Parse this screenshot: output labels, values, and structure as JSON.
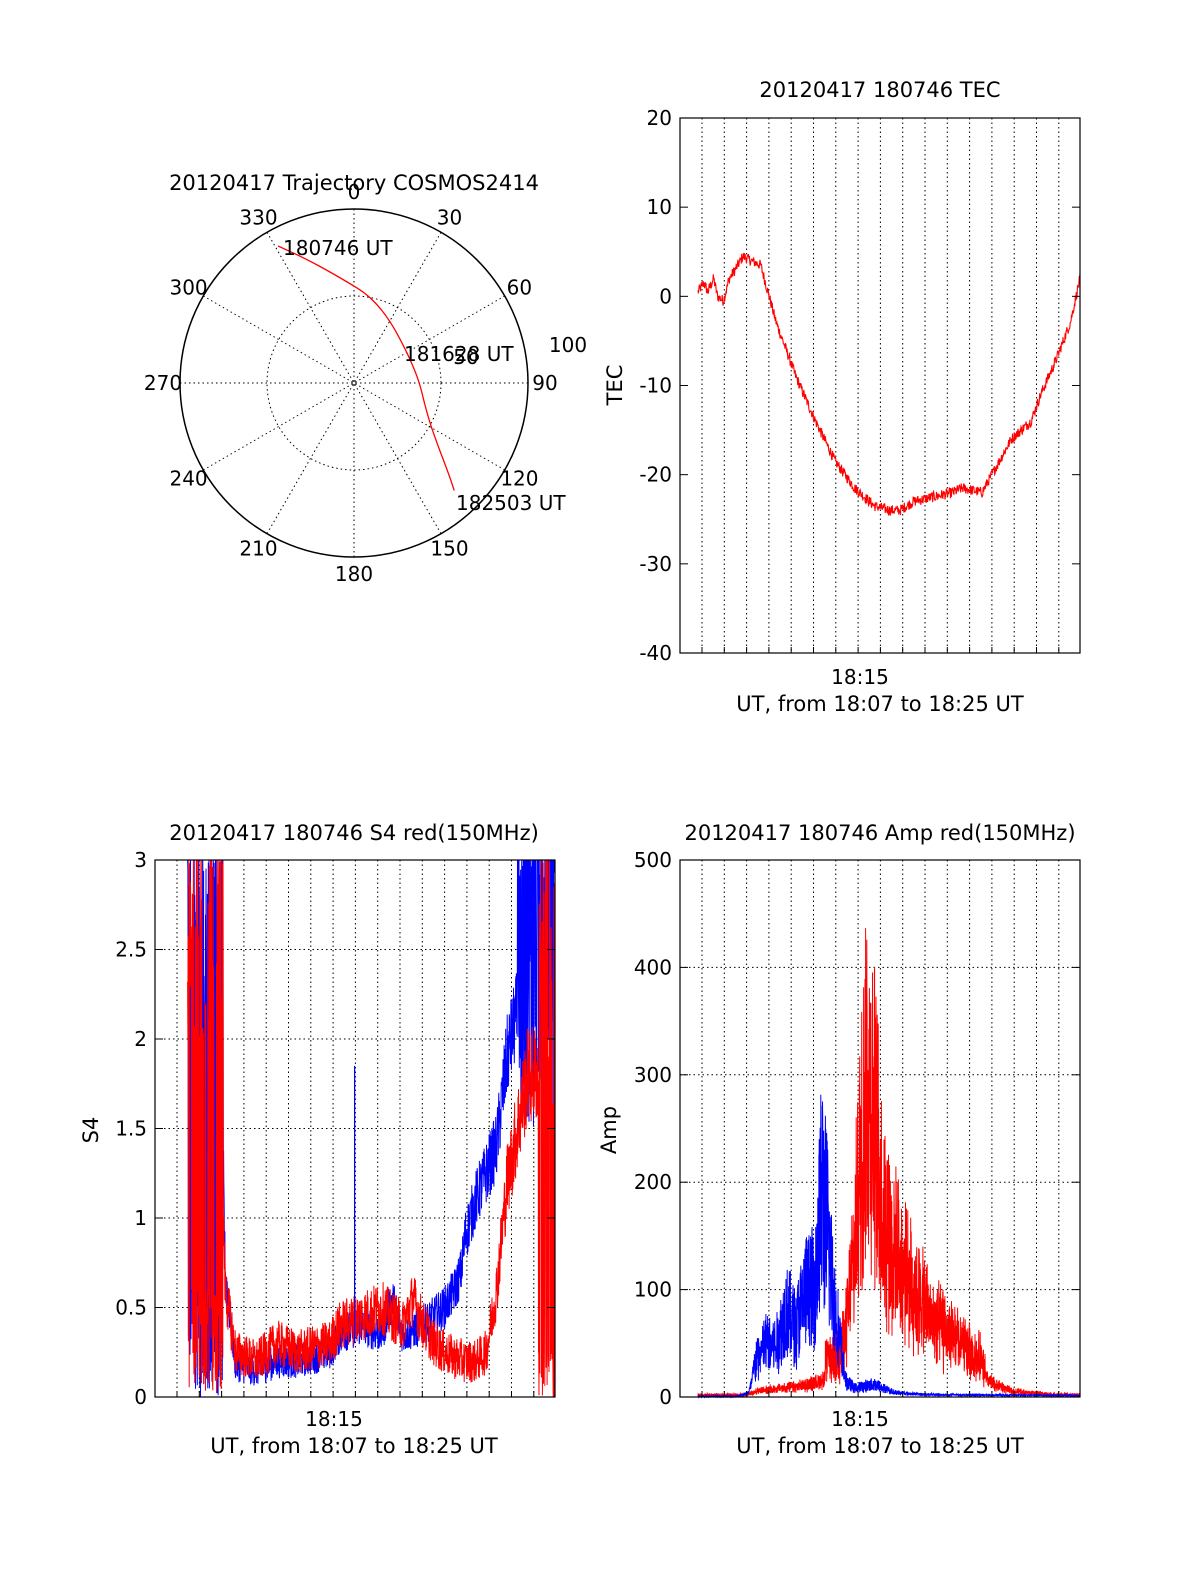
{
  "chart_data": [
    {
      "type": "polar",
      "title": "20120417 Trajectory COSMOS2414",
      "azimuth_labels": [
        "0",
        "30",
        "60",
        "90",
        "120",
        "150",
        "180",
        "210",
        "240",
        "270",
        "300",
        "330"
      ],
      "ring_labels": [
        "50",
        "100"
      ],
      "track": {
        "color": "#ff0000",
        "points": [
          {
            "az": 331,
            "el": 9
          },
          {
            "az": 338,
            "el": 20
          },
          {
            "az": 350,
            "el": 33
          },
          {
            "az": 18,
            "el": 46
          },
          {
            "az": 78,
            "el": 57
          },
          {
            "az": 113,
            "el": 49
          },
          {
            "az": 126,
            "el": 37
          },
          {
            "az": 133,
            "el": 24
          },
          {
            "az": 137,
            "el": 14
          }
        ]
      },
      "annotations": [
        "180746 UT",
        "181628 UT",
        "182503 UT"
      ]
    },
    {
      "type": "line",
      "title": "20120417 180746 TEC",
      "ylabel": "TEC",
      "xlabel": "UT, from 18:07 to 18:25 UT",
      "x_tick_label": "18:15",
      "xlim_minutes": [
        18.1,
        35.5
      ],
      "ylim": [
        -40,
        20
      ],
      "yticks": [
        -40,
        -30,
        -20,
        -10,
        0,
        10,
        20
      ],
      "series": [
        {
          "color": "#ff0000",
          "x": [
            0,
            0.3,
            0.5,
            0.8,
            1.0,
            1.3,
            1.6,
            1.9,
            2.3,
            2.7,
            3.2,
            4,
            5,
            6,
            7,
            8,
            9,
            9.8,
            10.3,
            11,
            12,
            13,
            13.5,
            14.5,
            15,
            16,
            17,
            17.5,
            18.3,
            19,
            19.5
          ],
          "y": [
            0.5,
            1.5,
            0.5,
            2,
            0,
            -0.5,
            2,
            3,
            4.5,
            4,
            3.5,
            -3,
            -9,
            -14,
            -18.5,
            -21.5,
            -23.5,
            -24,
            -24,
            -23,
            -22.5,
            -22,
            -21.5,
            -22,
            -20,
            -16,
            -14,
            -11,
            -7,
            -3,
            2
          ],
          "noise": 0.6
        }
      ]
    },
    {
      "type": "line",
      "title": "20120417 180746 S4 red(150MHz)",
      "ylabel": "S4",
      "xlabel": "UT, from 18:07 to 18:25 UT",
      "x_tick_label": "18:15",
      "ylim": [
        0,
        3
      ],
      "yticks": [
        "0",
        "0.5",
        "1",
        "1.5",
        "2",
        "2.5",
        "3"
      ],
      "series": [
        {
          "name": "",
          "color": "#0000ff",
          "x": [
            0.7,
            2.3,
            2.5,
            3.0,
            4,
            5,
            6,
            7.5,
            8,
            9,
            10,
            10.5,
            11,
            12,
            13,
            13.5,
            13.8,
            14,
            14.5,
            15.5,
            16,
            17,
            17.5,
            18.3
          ],
          "y": [
            2.0,
            2.0,
            0.7,
            0.18,
            0.15,
            0.2,
            0.2,
            0.25,
            0.35,
            0.4,
            0.35,
            0.55,
            0.35,
            0.4,
            0.5,
            0.6,
            0.7,
            0.9,
            1.1,
            1.4,
            1.9,
            2.4,
            2.8,
            2.8
          ],
          "noise": 0.08
        },
        {
          "name": "",
          "color": "#ff0000",
          "x": [
            0.7,
            2.3,
            2.5,
            3.0,
            4,
            5,
            6,
            7.5,
            8,
            9,
            10,
            11,
            11.5,
            12,
            12.5,
            13,
            13.5,
            14,
            14.5,
            15,
            15.5,
            16,
            17,
            18.3
          ],
          "y": [
            1.5,
            1.5,
            0.6,
            0.25,
            0.2,
            0.3,
            0.25,
            0.3,
            0.4,
            0.45,
            0.5,
            0.4,
            0.55,
            0.4,
            0.3,
            0.25,
            0.22,
            0.2,
            0.2,
            0.25,
            0.6,
            1.2,
            1.8,
            1.8
          ],
          "noise": 0.1
        }
      ]
    },
    {
      "type": "line",
      "title": "20120417 180746 Amp red(150MHz)",
      "ylabel": "Amp",
      "xlabel": "UT, from 18:07 to 18:25 UT",
      "x_tick_label": "18:15",
      "ylim": [
        0,
        500
      ],
      "yticks": [
        "0",
        "100",
        "200",
        "300",
        "400",
        "500"
      ],
      "series": [
        {
          "name": "",
          "color": "#0000ff",
          "x": [
            0,
            2,
            2.6,
            3.0,
            3.5,
            4,
            4.5,
            5,
            5.5,
            6,
            6.3,
            6.6,
            7.0,
            7.5,
            8,
            9,
            9.5,
            10,
            11,
            12,
            19.5
          ],
          "y": [
            0,
            0,
            5,
            40,
            60,
            55,
            100,
            80,
            120,
            130,
            250,
            200,
            100,
            20,
            10,
            15,
            10,
            5,
            3,
            2,
            1
          ],
          "noise": 12
        },
        {
          "name": "",
          "color": "#ff0000",
          "x": [
            0,
            2.5,
            3,
            4,
            5,
            6,
            7,
            7.5,
            8,
            8.3,
            8.6,
            9,
            9.5,
            10,
            10.5,
            11,
            11.5,
            12,
            12.5,
            13,
            14,
            15,
            16,
            17,
            18,
            19.5
          ],
          "y": [
            0,
            0,
            5,
            8,
            10,
            15,
            25,
            50,
            160,
            280,
            380,
            320,
            200,
            160,
            130,
            110,
            90,
            70,
            60,
            50,
            30,
            15,
            5,
            3,
            1,
            0
          ],
          "noise": 35
        }
      ]
    }
  ]
}
